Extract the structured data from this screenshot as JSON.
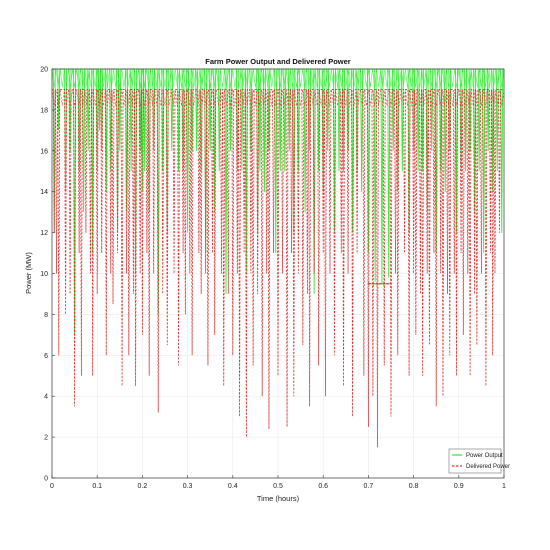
{
  "chart_data": {
    "type": "line",
    "title": "Farm Power Output and Delivered Power",
    "xlabel": "Time (hours)",
    "ylabel": "Power (MW)",
    "xlim": [
      0,
      1
    ],
    "ylim": [
      0,
      20
    ],
    "xticks": [
      0,
      0.1,
      0.2,
      0.3,
      0.4,
      0.5,
      0.6,
      0.7,
      0.8,
      0.9,
      1
    ],
    "xtick_labels": [
      "0",
      "0.1",
      "0.2",
      "0.3",
      "0.4",
      "0.5",
      "0.6",
      "0.7",
      "0.8",
      "0.9",
      "1"
    ],
    "yticks": [
      0,
      2,
      4,
      6,
      8,
      10,
      12,
      14,
      16,
      18,
      20
    ],
    "ytick_labels": [
      "0",
      "2",
      "4",
      "6",
      "8",
      "10",
      "12",
      "14",
      "16",
      "18",
      "20"
    ],
    "grid": true,
    "legend_position": "bottom-right",
    "series": [
      {
        "name": "Power Output",
        "color": "#33ee33",
        "style": "solid",
        "baseline": 20,
        "dips": [
          [
            0.005,
            12
          ],
          [
            0.03,
            14
          ],
          [
            0.05,
            7
          ],
          [
            0.07,
            13
          ],
          [
            0.09,
            11
          ],
          [
            0.105,
            17
          ],
          [
            0.12,
            14
          ],
          [
            0.145,
            12
          ],
          [
            0.165,
            13
          ],
          [
            0.185,
            10
          ],
          [
            0.2,
            14
          ],
          [
            0.215,
            13
          ],
          [
            0.235,
            8
          ],
          [
            0.255,
            12
          ],
          [
            0.28,
            15
          ],
          [
            0.3,
            12
          ],
          [
            0.32,
            16
          ],
          [
            0.34,
            11
          ],
          [
            0.36,
            13
          ],
          [
            0.385,
            9
          ],
          [
            0.41,
            15
          ],
          [
            0.43,
            10
          ],
          [
            0.455,
            12
          ],
          [
            0.47,
            14
          ],
          [
            0.495,
            11
          ],
          [
            0.515,
            15
          ],
          [
            0.535,
            12
          ],
          [
            0.56,
            13
          ],
          [
            0.58,
            9
          ],
          [
            0.6,
            14
          ],
          [
            0.625,
            12
          ],
          [
            0.645,
            15
          ],
          [
            0.665,
            12
          ],
          [
            0.685,
            14
          ],
          [
            0.7,
            11
          ],
          [
            0.715,
            9.6
          ],
          [
            0.73,
            9.5
          ],
          [
            0.745,
            9.8
          ],
          [
            0.765,
            14
          ],
          [
            0.79,
            12
          ],
          [
            0.81,
            15
          ],
          [
            0.83,
            13
          ],
          [
            0.85,
            11
          ],
          [
            0.87,
            14
          ],
          [
            0.895,
            12
          ],
          [
            0.915,
            15
          ],
          [
            0.935,
            13
          ],
          [
            0.955,
            11
          ],
          [
            0.975,
            14
          ],
          [
            0.995,
            12
          ]
        ],
        "extra_dips": [
          [
            0.015,
            17
          ],
          [
            0.04,
            16
          ],
          [
            0.06,
            15
          ],
          [
            0.08,
            16
          ],
          [
            0.1,
            15
          ],
          [
            0.11,
            16
          ],
          [
            0.13,
            15
          ],
          [
            0.15,
            16
          ],
          [
            0.175,
            15
          ],
          [
            0.195,
            16
          ],
          [
            0.205,
            15
          ],
          [
            0.225,
            16
          ],
          [
            0.245,
            15
          ],
          [
            0.265,
            16
          ],
          [
            0.29,
            15
          ],
          [
            0.31,
            16
          ],
          [
            0.33,
            15
          ],
          [
            0.35,
            16
          ],
          [
            0.37,
            15
          ],
          [
            0.395,
            16
          ],
          [
            0.42,
            15
          ],
          [
            0.44,
            16
          ],
          [
            0.46,
            15
          ],
          [
            0.48,
            16
          ],
          [
            0.505,
            15
          ],
          [
            0.525,
            16
          ],
          [
            0.545,
            15
          ],
          [
            0.57,
            16
          ],
          [
            0.59,
            15
          ],
          [
            0.61,
            16
          ],
          [
            0.635,
            15
          ],
          [
            0.655,
            16
          ],
          [
            0.675,
            15
          ],
          [
            0.755,
            16
          ],
          [
            0.775,
            15
          ],
          [
            0.8,
            16
          ],
          [
            0.82,
            15
          ],
          [
            0.84,
            16
          ],
          [
            0.86,
            15
          ],
          [
            0.88,
            16
          ],
          [
            0.905,
            15
          ],
          [
            0.925,
            16
          ],
          [
            0.945,
            15
          ],
          [
            0.965,
            16
          ],
          [
            0.985,
            15
          ]
        ]
      },
      {
        "name": "Delivered Power",
        "color": "#dd3333",
        "style": "dashed",
        "baseline": 19,
        "dips": [
          [
            0.005,
            12
          ],
          [
            0.015,
            6
          ],
          [
            0.03,
            8
          ],
          [
            0.05,
            3.5
          ],
          [
            0.065,
            5
          ],
          [
            0.075,
            12
          ],
          [
            0.09,
            5
          ],
          [
            0.1,
            9
          ],
          [
            0.12,
            6
          ],
          [
            0.135,
            8.5
          ],
          [
            0.155,
            4.5
          ],
          [
            0.17,
            6
          ],
          [
            0.185,
            4.5
          ],
          [
            0.2,
            7
          ],
          [
            0.215,
            5
          ],
          [
            0.235,
            3.2
          ],
          [
            0.255,
            6.5
          ],
          [
            0.28,
            5.5
          ],
          [
            0.295,
            8
          ],
          [
            0.31,
            6
          ],
          [
            0.33,
            9
          ],
          [
            0.345,
            5.5
          ],
          [
            0.36,
            7
          ],
          [
            0.38,
            4.5
          ],
          [
            0.4,
            6
          ],
          [
            0.415,
            3
          ],
          [
            0.43,
            2
          ],
          [
            0.445,
            5.5
          ],
          [
            0.465,
            4
          ],
          [
            0.48,
            2.4
          ],
          [
            0.5,
            5
          ],
          [
            0.52,
            2.5
          ],
          [
            0.535,
            4
          ],
          [
            0.555,
            6.5
          ],
          [
            0.57,
            3.5
          ],
          [
            0.59,
            5.5
          ],
          [
            0.605,
            4
          ],
          [
            0.625,
            6
          ],
          [
            0.645,
            4.5
          ],
          [
            0.665,
            3
          ],
          [
            0.69,
            5
          ],
          [
            0.7,
            2.5
          ],
          [
            0.71,
            4
          ],
          [
            0.72,
            1.5
          ],
          [
            0.735,
            5.5
          ],
          [
            0.75,
            3
          ],
          [
            0.765,
            6
          ],
          [
            0.79,
            5
          ],
          [
            0.805,
            7
          ],
          [
            0.82,
            5
          ],
          [
            0.835,
            6.5
          ],
          [
            0.85,
            3.5
          ],
          [
            0.865,
            4
          ],
          [
            0.88,
            6
          ],
          [
            0.895,
            5
          ],
          [
            0.91,
            7
          ],
          [
            0.925,
            5
          ],
          [
            0.94,
            6.5
          ],
          [
            0.96,
            4.5
          ],
          [
            0.975,
            6
          ],
          [
            0.99,
            12
          ]
        ],
        "extra_dips": [
          [
            0.01,
            10
          ],
          [
            0.04,
            9
          ],
          [
            0.06,
            11
          ],
          [
            0.085,
            10
          ],
          [
            0.11,
            11
          ],
          [
            0.13,
            10
          ],
          [
            0.145,
            11
          ],
          [
            0.165,
            10
          ],
          [
            0.18,
            9
          ],
          [
            0.195,
            10
          ],
          [
            0.21,
            11
          ],
          [
            0.225,
            10
          ],
          [
            0.245,
            9
          ],
          [
            0.27,
            10
          ],
          [
            0.29,
            11
          ],
          [
            0.305,
            10
          ],
          [
            0.325,
            11
          ],
          [
            0.34,
            10
          ],
          [
            0.355,
            11
          ],
          [
            0.375,
            10
          ],
          [
            0.39,
            9
          ],
          [
            0.41,
            10
          ],
          [
            0.425,
            11
          ],
          [
            0.44,
            10
          ],
          [
            0.455,
            9
          ],
          [
            0.475,
            10
          ],
          [
            0.49,
            11
          ],
          [
            0.51,
            10
          ],
          [
            0.53,
            11
          ],
          [
            0.545,
            10
          ],
          [
            0.565,
            9
          ],
          [
            0.58,
            10
          ],
          [
            0.6,
            11
          ],
          [
            0.615,
            10
          ],
          [
            0.64,
            11
          ],
          [
            0.655,
            10
          ],
          [
            0.675,
            11
          ],
          [
            0.76,
            10
          ],
          [
            0.78,
            11
          ],
          [
            0.8,
            10
          ],
          [
            0.815,
            9
          ],
          [
            0.83,
            10
          ],
          [
            0.845,
            11
          ],
          [
            0.86,
            10
          ],
          [
            0.875,
            9
          ],
          [
            0.89,
            10
          ],
          [
            0.905,
            11
          ],
          [
            0.92,
            10
          ],
          [
            0.935,
            9
          ],
          [
            0.95,
            10
          ],
          [
            0.97,
            11
          ],
          [
            0.98,
            10
          ]
        ]
      }
    ],
    "annotations": [
      {
        "series": "Power Output",
        "x_start": 0.7,
        "x_end": 0.75,
        "plateau": 9.5
      },
      {
        "series": "Delivered Power",
        "x_start": 0.7,
        "x_end": 0.75,
        "plateau": 9.5
      }
    ]
  }
}
